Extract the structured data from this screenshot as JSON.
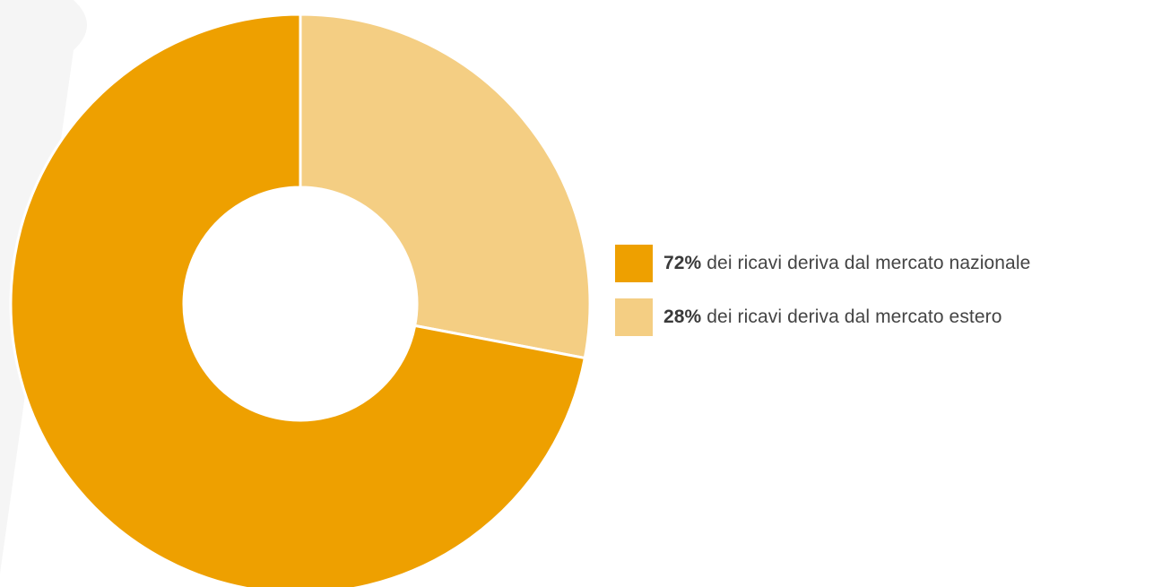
{
  "chart_data": {
    "type": "pie",
    "donut": true,
    "title": "",
    "categories": [
      "mercato nazionale",
      "mercato estero"
    ],
    "values": [
      72,
      28
    ],
    "colors": [
      "#EEA000",
      "#F4CE83"
    ],
    "legend_position": "right"
  },
  "legend": {
    "items": [
      {
        "percent": "72%",
        "text": " dei ricavi deriva dal mercato nazionale",
        "color": "#EEA000"
      },
      {
        "percent": "28%",
        "text": " dei ricavi deriva dal mercato estero",
        "color": "#F4CE83"
      }
    ]
  },
  "background_color": "#F5F5F5"
}
